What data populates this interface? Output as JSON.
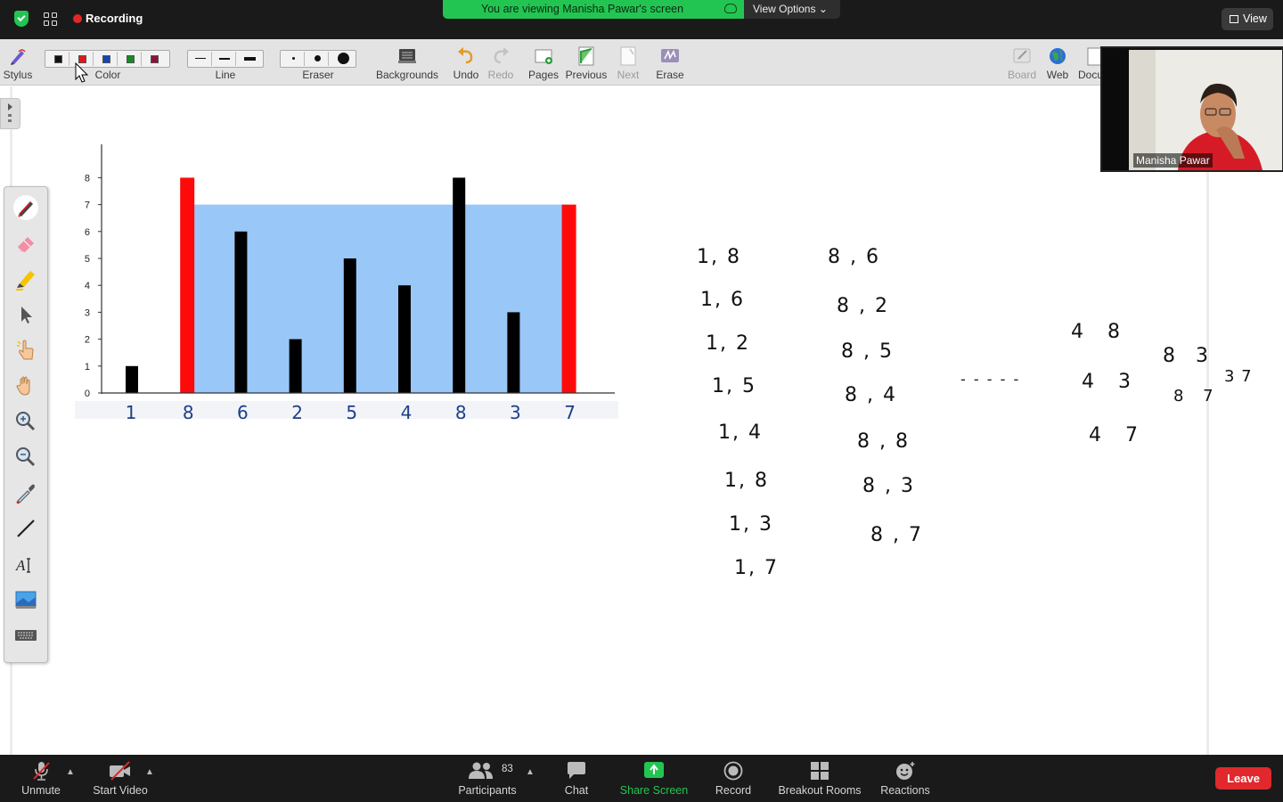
{
  "topbar": {
    "recording_label": "Recording",
    "viewing_text": "You are viewing Manisha Pawar's screen",
    "view_options_label": "View Options",
    "view_label": "View"
  },
  "wb_toolbar": {
    "stylus_label": "Stylus",
    "color_label": "Color",
    "colors": [
      "#111111",
      "#e0161b",
      "#1346b8",
      "#168a24",
      "#8e1238"
    ],
    "line_label": "Line",
    "eraser_label": "Eraser",
    "backgrounds_label": "Backgrounds",
    "undo_label": "Undo",
    "redo_label": "Redo",
    "pages_label": "Pages",
    "previous_label": "Previous",
    "next_label": "Next",
    "erase_label": "Erase",
    "board_label": "Board",
    "web_label": "Web",
    "docs_label": "Docu"
  },
  "side_tools": [
    "pen-icon",
    "eraser-icon",
    "highlighter-icon",
    "select-arrow-icon",
    "pointer-hand-icon",
    "pan-hand-icon",
    "zoom-in-icon",
    "zoom-out-icon",
    "eyedropper-icon",
    "line-tool-icon",
    "text-tool-icon",
    "image-tool-icon",
    "keyboard-icon"
  ],
  "chart_data": {
    "type": "bar",
    "categories": [
      "1",
      "8",
      "6",
      "2",
      "5",
      "4",
      "8",
      "3",
      "7"
    ],
    "values": [
      1,
      8,
      6,
      2,
      5,
      4,
      8,
      3,
      7
    ],
    "highlight_indices": [
      1,
      8
    ],
    "water_level": 7,
    "ylim": [
      0,
      8
    ],
    "yticks": [
      "0",
      "1",
      "2",
      "3",
      "4",
      "5",
      "6",
      "7",
      "8"
    ],
    "bar_color": "#000000",
    "highlight_color": "#ff0a0a",
    "water_color": "#99c8f8"
  },
  "handwriting": {
    "col1": [
      "1, 8",
      "1, 6",
      "1, 2",
      "1, 5",
      "1, 4",
      "1, 8",
      "1, 3",
      "1, 7"
    ],
    "col2": [
      "8 , 6",
      "8 , 2",
      "8 , 5",
      "8 , 4",
      "8 , 8",
      "8 , 3",
      "8 , 7"
    ],
    "dots": "- - - - -",
    "col3": [
      "4 8",
      "4 3",
      "4 7"
    ],
    "col4": [
      "8 3",
      "8 7",
      "3 7"
    ]
  },
  "video": {
    "participant_name": "Manisha Pawar"
  },
  "bottombar": {
    "unmute_label": "Unmute",
    "start_video_label": "Start Video",
    "participants_label": "Participants",
    "participants_count": "83",
    "chat_label": "Chat",
    "share_screen_label": "Share Screen",
    "record_label": "Record",
    "breakout_label": "Breakout Rooms",
    "reactions_label": "Reactions",
    "leave_label": "Leave"
  }
}
